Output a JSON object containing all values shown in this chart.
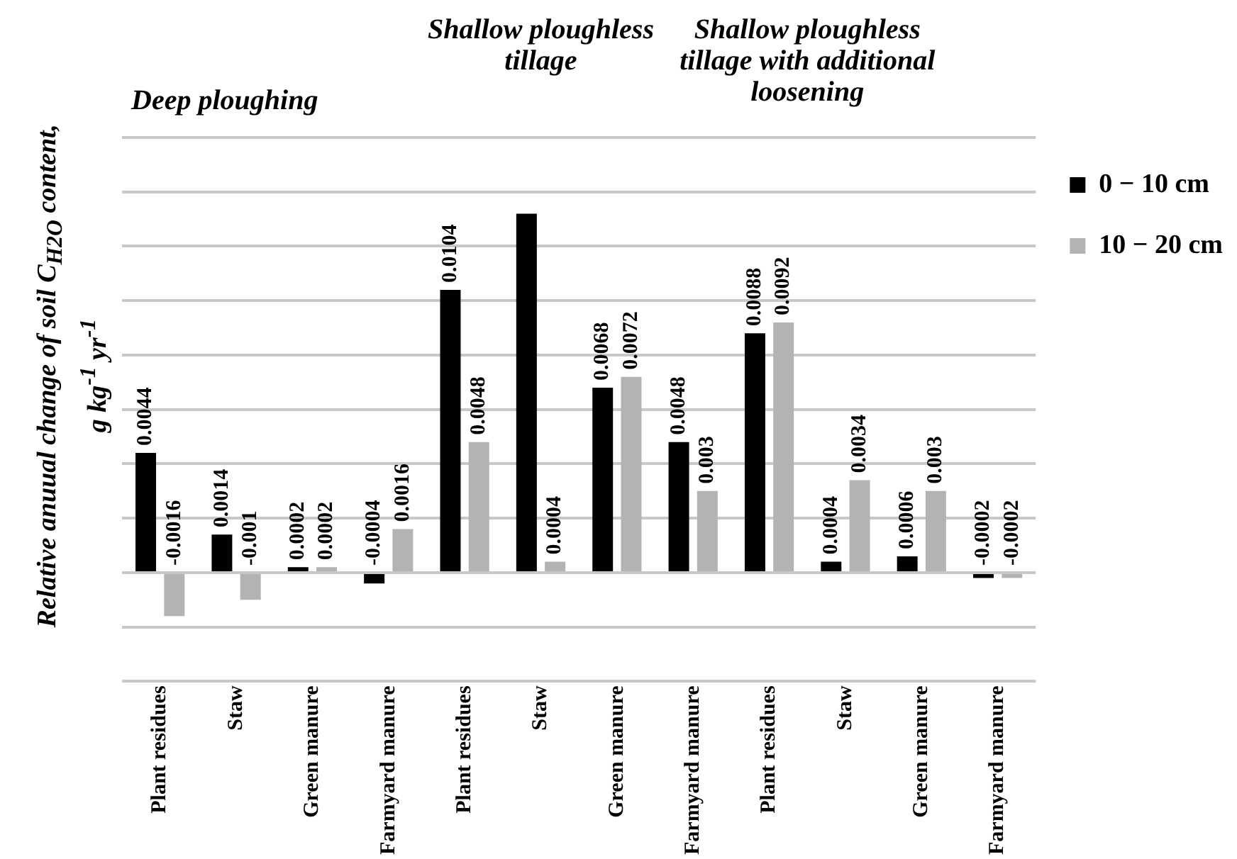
{
  "chart_data": {
    "type": "bar",
    "ylabel": "Relative anuual change of soil C$_{H2O}$ content, g kg$^{-1}$ yr$^{-1}$",
    "annotations": [
      "Deep ploughing",
      "Shallow ploughless tillage",
      "Shallow ploughless tillage with additional loosening"
    ],
    "categories": [
      "Plant residues",
      "Staw",
      "Green manure",
      "Farmyard manure",
      "Plant residues",
      "Staw",
      "Green manure",
      "Farmyard manure",
      "Plant residues",
      "Staw",
      "Green manure",
      "Farmyard manure"
    ],
    "series": [
      {
        "name": "0 − 10 cm",
        "color": "#000000",
        "values": [
          0.0044,
          0.0014,
          0.0002,
          -0.0004,
          0.0104,
          0.0132,
          0.0068,
          0.0048,
          0.0088,
          0.0004,
          0.0006,
          -0.0002
        ],
        "value_labels": [
          "0.0044",
          "0.0014",
          "0.0002",
          "-0.0004",
          "0.0104",
          null,
          "0.0068",
          "0.0048",
          "0.0088",
          "0.0004",
          "0.0006",
          "-0.0002"
        ]
      },
      {
        "name": "10 − 20 cm",
        "color": "#b3b3b3",
        "values": [
          -0.0016,
          -0.001,
          0.0002,
          0.0016,
          0.0048,
          0.0004,
          0.0072,
          0.003,
          0.0092,
          0.0034,
          0.003,
          -0.0002
        ],
        "value_labels": [
          "-0.0016",
          "-0.001",
          "0.0002",
          "0.0016",
          "0.0048",
          "0.0004",
          "0.0072",
          "0.003",
          "0.0092",
          "0.0034",
          "0.003",
          "-0.0002"
        ]
      }
    ],
    "ylim": [
      -0.004,
      0.016
    ],
    "yticks": [
      {
        "value": -0.004,
        "label": null
      },
      {
        "value": -0.002,
        "label": null
      },
      {
        "value": 0,
        "label": null
      },
      {
        "value": 0.002,
        "label": null
      },
      {
        "value": 0.004,
        "label": null
      },
      {
        "value": 0.006,
        "label": null
      },
      {
        "value": 0.008,
        "label": null
      },
      {
        "value": 0.01,
        "label": null
      },
      {
        "value": 0.012,
        "label": null
      },
      {
        "value": 0.014,
        "label": null
      },
      {
        "value": 0.016,
        "label": null
      }
    ],
    "grid": "y",
    "legend": "right"
  }
}
